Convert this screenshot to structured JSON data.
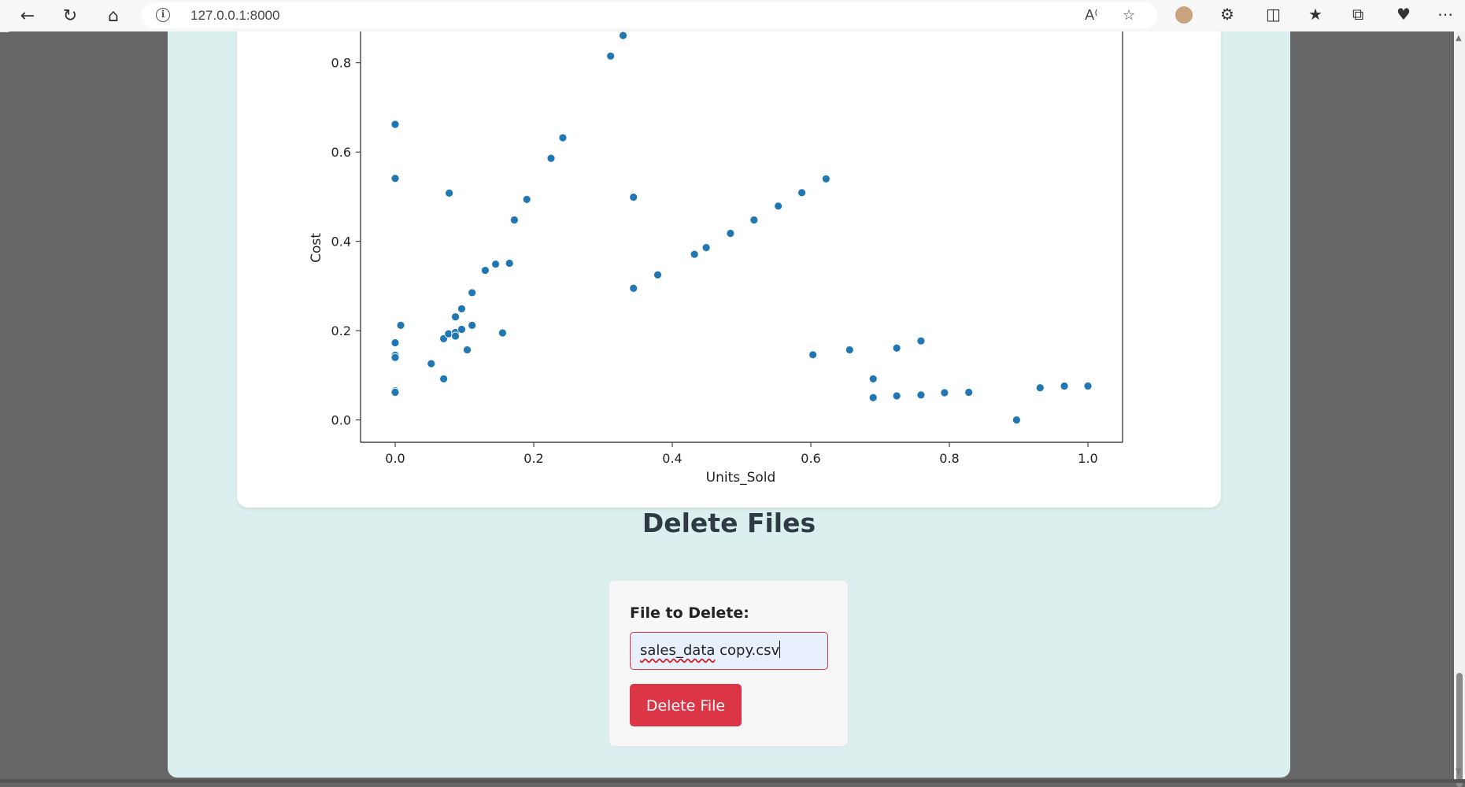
{
  "browser": {
    "url": "127.0.0.1:8000",
    "icons": [
      "back-icon",
      "refresh-icon",
      "home-icon",
      "info-icon",
      "read-aloud-icon",
      "favorite-star-icon",
      "profile-icon",
      "extensions-icon",
      "split-screen-icon",
      "favorites-icon",
      "collections-icon",
      "browser-essentials-icon",
      "more-icon"
    ]
  },
  "chart_data": {
    "type": "scatter",
    "xlabel": "Units_Sold",
    "ylabel": "Cost",
    "xlim": [
      -0.05,
      1.05
    ],
    "ylim": [
      -0.05,
      0.87
    ],
    "x_ticks": [
      "0.0",
      "0.2",
      "0.4",
      "0.6",
      "0.8",
      "1.0"
    ],
    "y_ticks": [
      "0.0",
      "0.2",
      "0.4",
      "0.6",
      "0.8"
    ],
    "color": "#1f77b4",
    "points": [
      [
        0.0,
        0.662
      ],
      [
        0.0,
        0.541
      ],
      [
        0.008,
        0.212
      ],
      [
        0.0,
        0.173
      ],
      [
        0.0,
        0.145
      ],
      [
        0.0,
        0.14
      ],
      [
        0.0,
        0.065
      ],
      [
        0.0,
        0.062
      ],
      [
        0.052,
        0.126
      ],
      [
        0.07,
        0.092
      ],
      [
        0.07,
        0.182
      ],
      [
        0.077,
        0.193
      ],
      [
        0.078,
        0.508
      ],
      [
        0.087,
        0.231
      ],
      [
        0.087,
        0.196
      ],
      [
        0.087,
        0.188
      ],
      [
        0.096,
        0.249
      ],
      [
        0.096,
        0.203
      ],
      [
        0.104,
        0.157
      ],
      [
        0.111,
        0.285
      ],
      [
        0.111,
        0.212
      ],
      [
        0.13,
        0.335
      ],
      [
        0.145,
        0.349
      ],
      [
        0.155,
        0.195
      ],
      [
        0.165,
        0.351
      ],
      [
        0.172,
        0.448
      ],
      [
        0.19,
        0.494
      ],
      [
        0.225,
        0.586
      ],
      [
        0.242,
        0.632
      ],
      [
        0.311,
        0.815
      ],
      [
        0.329,
        0.861
      ],
      [
        0.344,
        0.499
      ],
      [
        0.344,
        0.295
      ],
      [
        0.379,
        0.325
      ],
      [
        0.432,
        0.371
      ],
      [
        0.449,
        0.386
      ],
      [
        0.484,
        0.418
      ],
      [
        0.518,
        0.448
      ],
      [
        0.553,
        0.479
      ],
      [
        0.587,
        0.509
      ],
      [
        0.622,
        0.54
      ],
      [
        0.603,
        0.146
      ],
      [
        0.656,
        0.157
      ],
      [
        0.69,
        0.092
      ],
      [
        0.69,
        0.05
      ],
      [
        0.724,
        0.161
      ],
      [
        0.724,
        0.054
      ],
      [
        0.759,
        0.177
      ],
      [
        0.759,
        0.056
      ],
      [
        0.793,
        0.061
      ],
      [
        0.828,
        0.062
      ],
      [
        0.897,
        0.0
      ],
      [
        0.931,
        0.072
      ],
      [
        0.966,
        0.076
      ],
      [
        1.0,
        0.076
      ]
    ]
  },
  "delete_section": {
    "title": "Delete Files",
    "label": "File to Delete:",
    "input_value_word1": "sales_data",
    "input_value_rest": " copy.csv",
    "button_label": "Delete File",
    "button_color": "#dc3545"
  }
}
